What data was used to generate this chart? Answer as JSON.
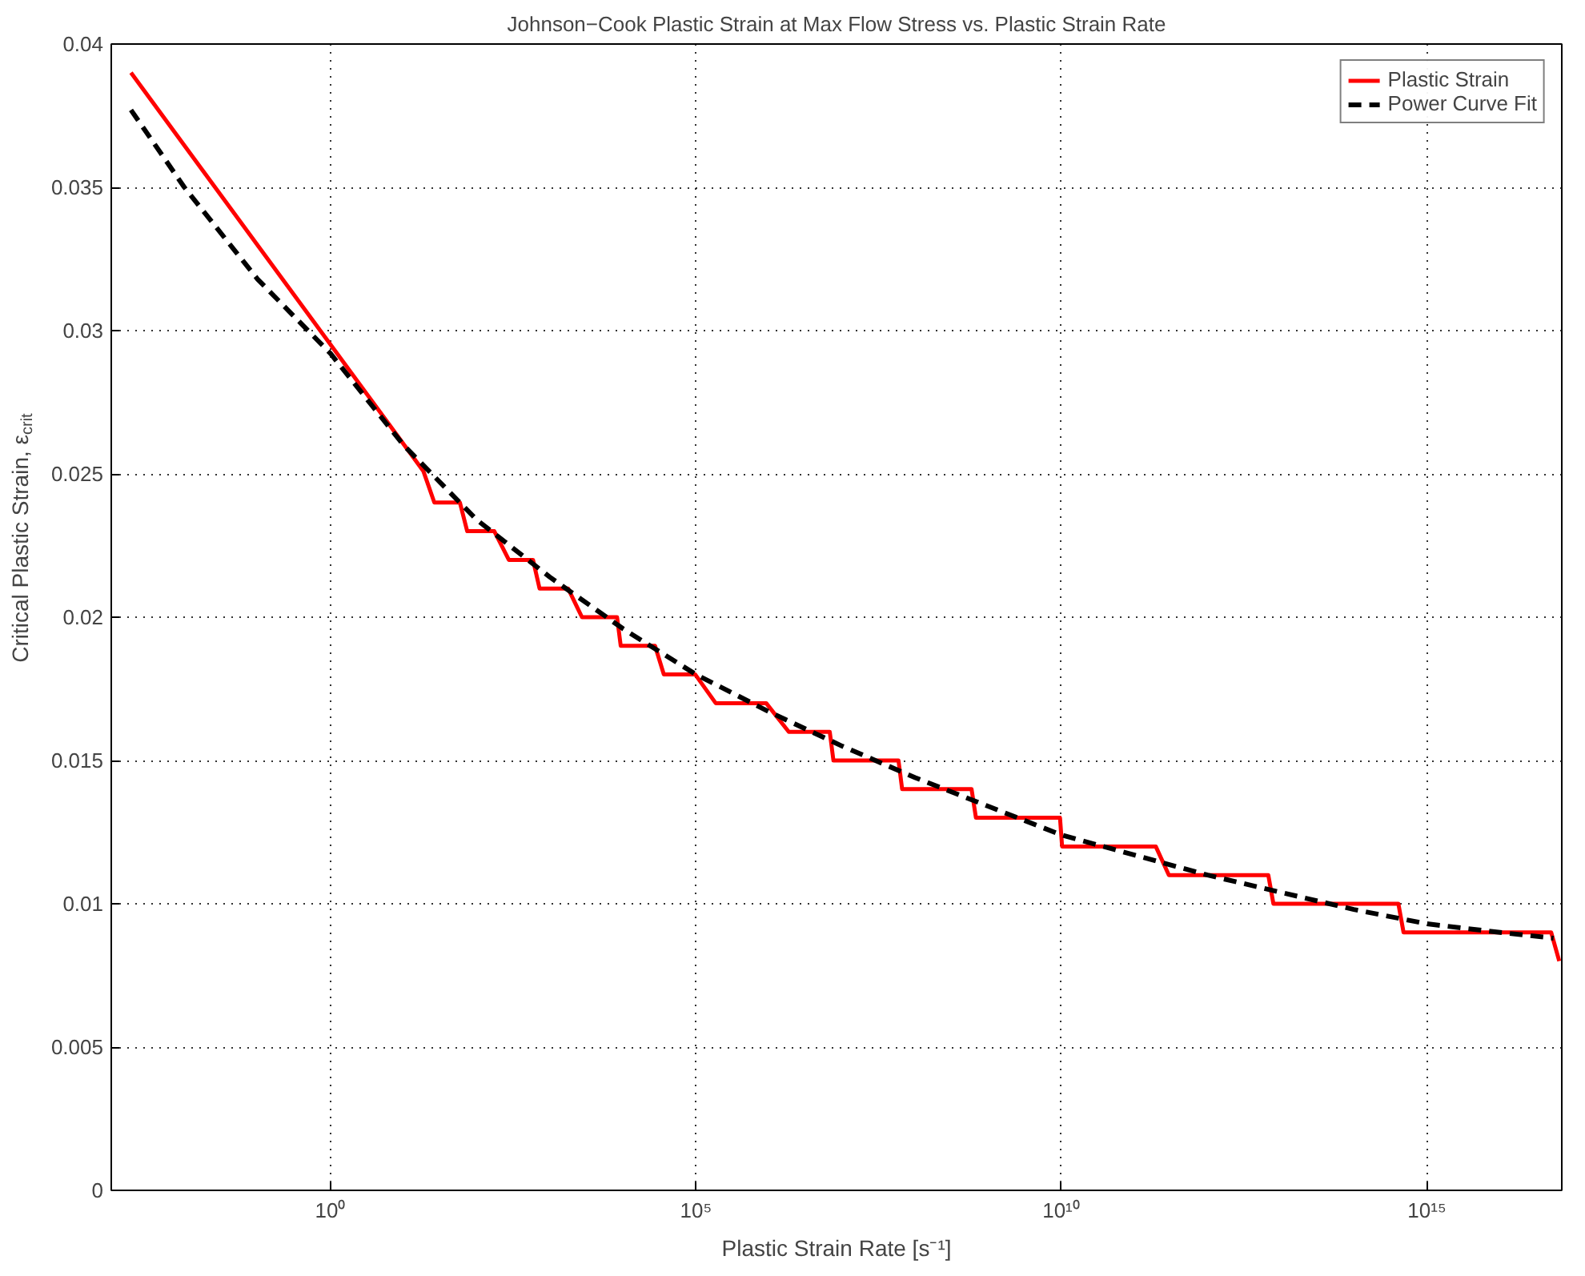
{
  "chart_data": {
    "type": "line",
    "title": "Johnson−Cook Plastic Strain at Max Flow Stress vs. Plastic Strain Rate",
    "xlabel": "Plastic Strain Rate [s⁻¹]",
    "ylabel": "Critical Plastic Strain, ε$_{crit}$",
    "log": "x",
    "xlim": [
      0.001,
      7e+16
    ],
    "xticks": [
      {
        "value": 1,
        "label": "10⁰"
      },
      {
        "value": 100000.0,
        "label": "10⁵"
      },
      {
        "value": 10000000000.0,
        "label": "10¹⁰"
      },
      {
        "value": 1000000000000000.0,
        "label": "10¹⁵"
      }
    ],
    "ylim": [
      0,
      0.04
    ],
    "yticks": [
      0,
      0.005,
      0.01,
      0.015,
      0.02,
      0.025,
      0.03,
      0.035,
      0.04
    ],
    "grid": true,
    "legend": "top right",
    "series": [
      {
        "name": "Plastic Strain",
        "color": "#ff0000",
        "line_style": "solid",
        "x": [
          0.00186,
          18.6,
          26.3,
          58.9,
          74.1,
          174,
          275,
          589,
          724,
          1778,
          2754,
          8318,
          9333,
          27500.0,
          36300.0,
          97700.0,
          186000.0,
          912000.0,
          1860000.0,
          6760000.0,
          7590000.0,
          58900000.0,
          66100000.0,
          589000000.0,
          676000000.0,
          9550000000.0,
          10200000000.0,
          195000000000.0,
          295000000000.0,
          6760000000000.0,
          7940000000000.0,
          407000000000000.0,
          479000000000000.0,
          5.01e+16,
          6.46e+16
        ],
        "values": [
          0.039,
          0.0251,
          0.024,
          0.024,
          0.023,
          0.023,
          0.022,
          0.022,
          0.021,
          0.021,
          0.02,
          0.02,
          0.019,
          0.019,
          0.018,
          0.018,
          0.017,
          0.017,
          0.016,
          0.016,
          0.015,
          0.015,
          0.014,
          0.014,
          0.013,
          0.013,
          0.012,
          0.012,
          0.011,
          0.011,
          0.01,
          0.01,
          0.009,
          0.009,
          0.008
        ]
      },
      {
        "name": "Power Curve Fit",
        "color": "#000000",
        "line_style": "dashed",
        "x": [
          0.00186,
          0.01,
          0.1,
          1,
          10,
          100,
          1000.0,
          10000.0,
          100000.0,
          1000000.0,
          10000000.0,
          100000000.0,
          1000000000.0,
          10000000000.0,
          100000000000.0,
          1000000000000.0,
          10000000000000.0,
          100000000000000.0,
          1000000000000000.0,
          1e+16,
          5.4e+16
        ],
        "values": [
          0.0377,
          0.035,
          0.0318,
          0.0292,
          0.026,
          0.0234,
          0.0214,
          0.0196,
          0.018,
          0.0167,
          0.0155,
          0.0144,
          0.0134,
          0.0124,
          0.0117,
          0.011,
          0.0104,
          0.0098,
          0.0093,
          0.009,
          0.0088
        ]
      }
    ]
  }
}
